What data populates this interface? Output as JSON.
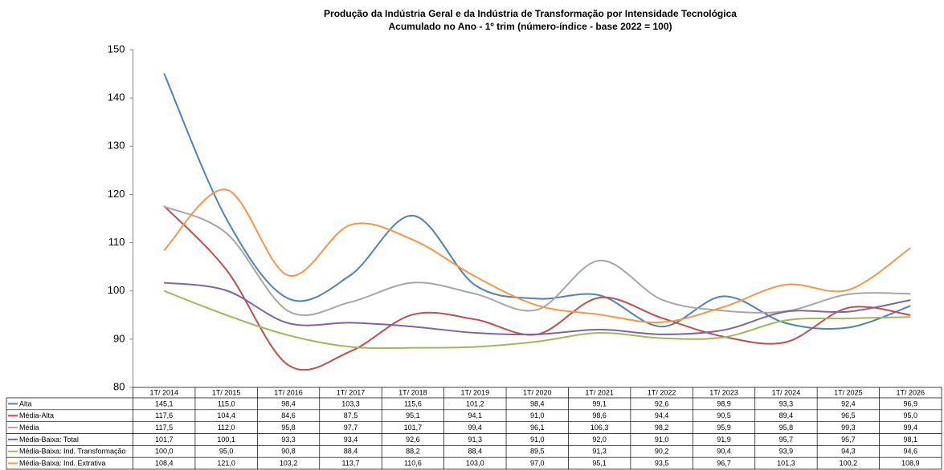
{
  "chart_data": {
    "type": "line",
    "title": "Produção da Indústria Geral e da Indústria de Transformação por Intensidade Tecnológica",
    "subtitle": "Acumulado no Ano - 1º trim (número-índice - base 2022 = 100)",
    "categories": [
      "1T/ 2014",
      "1T/ 2015",
      "1T/ 2016",
      "1T/ 2017",
      "1T/ 2018",
      "1T/ 2019",
      "1T/ 2020",
      "1T/ 2021",
      "1T/ 2022",
      "1T/ 2023",
      "1T/ 2024",
      "1T/ 2025",
      "1T/ 2026"
    ],
    "series": [
      {
        "name": "Alta",
        "color": "#4f81bd",
        "values": [
          145.1,
          115.0,
          98.4,
          103.3,
          115.6,
          101.2,
          98.4,
          99.1,
          92.6,
          98.9,
          93.3,
          92.4,
          96.9
        ],
        "value_labels": [
          "145,1",
          "115,0",
          "98,4",
          "103,3",
          "115,6",
          "101,2",
          "98,4",
          "99,1",
          "92,6",
          "98,9",
          "93,3",
          "92,4",
          "96,9"
        ]
      },
      {
        "name": "Média-Alta",
        "color": "#c0504d",
        "values": [
          117.6,
          104.4,
          84.6,
          87.5,
          95.1,
          94.1,
          91.0,
          98.6,
          94.4,
          90.5,
          89.4,
          96.5,
          95.0
        ],
        "value_labels": [
          "117,6",
          "104,4",
          "84,6",
          "87,5",
          "95,1",
          "94,1",
          "91,0",
          "98,6",
          "94,4",
          "90,5",
          "89,4",
          "96,5",
          "95,0"
        ]
      },
      {
        "name": "Média",
        "color": "#a6a6a6",
        "values": [
          117.5,
          112.0,
          95.8,
          97.7,
          101.7,
          99.4,
          96.1,
          106.3,
          98.2,
          95.9,
          95.8,
          99.3,
          99.4
        ],
        "value_labels": [
          "117,5",
          "112,0",
          "95,8",
          "97,7",
          "101,7",
          "99,4",
          "96,1",
          "106,3",
          "98,2",
          "95,9",
          "95,8",
          "99,3",
          "99,4"
        ]
      },
      {
        "name": "Média-Baixa: Total",
        "color": "#8064a2",
        "values": [
          101.7,
          100.1,
          93.3,
          93.4,
          92.6,
          91.3,
          91.0,
          92.0,
          91.0,
          91.9,
          95.7,
          95.7,
          98.1
        ],
        "value_labels": [
          "101,7",
          "100,1",
          "93,3",
          "93,4",
          "92,6",
          "91,3",
          "91,0",
          "92,0",
          "91,0",
          "91,9",
          "95,7",
          "95,7",
          "98,1"
        ]
      },
      {
        "name": "Média-Baixa: Ind. Transformação",
        "color": "#9bbb59",
        "values": [
          100.0,
          95.0,
          90.8,
          88.4,
          88.2,
          88.4,
          89.5,
          91.3,
          90.2,
          90.4,
          93.9,
          94.3,
          94.6
        ],
        "value_labels": [
          "100,0",
          "95,0",
          "90,8",
          "88,4",
          "88,2",
          "88,4",
          "89,5",
          "91,3",
          "90,2",
          "90,4",
          "93,9",
          "94,3",
          "94,6"
        ]
      },
      {
        "name": "Média-Baixa: Ind. Extrativa",
        "color": "#f79646",
        "values": [
          108.4,
          121.0,
          103.2,
          113.7,
          110.6,
          103.0,
          97.0,
          95.1,
          93.5,
          96.7,
          101.3,
          100.2,
          108.9
        ],
        "value_labels": [
          "108,4",
          "121,0",
          "103,2",
          "113,7",
          "110,6",
          "103,0",
          "97,0",
          "95,1",
          "93,5",
          "96,7",
          "101,3",
          "100,2",
          "108,9"
        ]
      }
    ],
    "ylim": [
      80,
      150
    ],
    "yticks": [
      80,
      90,
      100,
      110,
      120,
      130,
      140,
      150
    ],
    "grid": false
  }
}
